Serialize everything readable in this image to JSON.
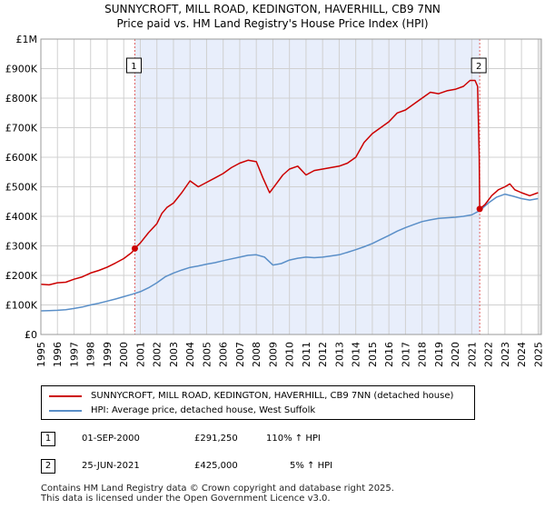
{
  "title_line1": "SUNNYCROFT, MILL ROAD, KEDINGTON, HAVERHILL, CB9 7NN",
  "title_line2": "Price paid vs. HM Land Registry's House Price Index (HPI)",
  "chart_data": {
    "type": "line",
    "title": "SUNNYCROFT, MILL ROAD, KEDINGTON, HAVERHILL, CB9 7NN — Price paid vs. HM Land Registry's House Price Index (HPI)",
    "xlabel": "",
    "ylabel": "",
    "xlim": [
      1995,
      2025.2
    ],
    "ylim": [
      0,
      1000000
    ],
    "y_ticks": [
      0,
      100000,
      200000,
      300000,
      400000,
      500000,
      600000,
      700000,
      800000,
      900000,
      1000000
    ],
    "y_tick_labels": [
      "£0",
      "£100K",
      "£200K",
      "£300K",
      "£400K",
      "£500K",
      "£600K",
      "£700K",
      "£800K",
      "£900K",
      "£1M"
    ],
    "x_ticks": [
      1995,
      1996,
      1997,
      1998,
      1999,
      2000,
      2001,
      2002,
      2003,
      2004,
      2005,
      2006,
      2007,
      2008,
      2009,
      2010,
      2011,
      2012,
      2013,
      2014,
      2015,
      2016,
      2017,
      2018,
      2019,
      2020,
      2021,
      2022,
      2023,
      2024,
      2025
    ],
    "x_tick_labels": [
      "1995",
      "1996",
      "1997",
      "1998",
      "1999",
      "2000",
      "2001",
      "2002",
      "2003",
      "2004",
      "2005",
      "2006",
      "2007",
      "2008",
      "2009",
      "2010",
      "2011",
      "2012",
      "2013",
      "2014",
      "2015",
      "2016",
      "2017",
      "2018",
      "2019",
      "2020",
      "2021",
      "2022",
      "2023",
      "2024",
      "2025"
    ],
    "grid": true,
    "shaded_range": [
      2000.67,
      2021.48
    ],
    "series": [
      {
        "name": "SUNNYCROFT, MILL ROAD, KEDINGTON, HAVERHILL, CB9 7NN (detached house)",
        "color": "#cc0000",
        "x": [
          1995.0,
          1995.5,
          1996.0,
          1996.5,
          1997.0,
          1997.5,
          1998.0,
          1998.5,
          1999.0,
          1999.5,
          2000.0,
          2000.5,
          2000.67,
          2001.0,
          2001.5,
          2002.0,
          2002.3,
          2002.6,
          2003.0,
          2003.5,
          2004.0,
          2004.5,
          2005.0,
          2005.5,
          2006.0,
          2006.5,
          2007.0,
          2007.5,
          2008.0,
          2008.4,
          2008.8,
          2009.2,
          2009.6,
          2010.0,
          2010.5,
          2011.0,
          2011.5,
          2012.0,
          2012.5,
          2013.0,
          2013.5,
          2014.0,
          2014.5,
          2015.0,
          2015.5,
          2016.0,
          2016.5,
          2017.0,
          2017.5,
          2018.0,
          2018.5,
          2019.0,
          2019.5,
          2020.0,
          2020.5,
          2020.9,
          2021.2,
          2021.35,
          2021.45,
          2021.48,
          2021.8,
          2022.2,
          2022.6,
          2023.0,
          2023.3,
          2023.6,
          2024.0,
          2024.5,
          2025.0
        ],
        "values": [
          170000,
          168000,
          175000,
          177000,
          187000,
          195000,
          208000,
          217000,
          228000,
          242000,
          257000,
          278000,
          291250,
          310000,
          345000,
          375000,
          410000,
          430000,
          445000,
          480000,
          520000,
          500000,
          515000,
          530000,
          545000,
          565000,
          580000,
          590000,
          585000,
          530000,
          480000,
          510000,
          540000,
          560000,
          570000,
          540000,
          555000,
          560000,
          565000,
          570000,
          580000,
          600000,
          650000,
          680000,
          700000,
          720000,
          750000,
          760000,
          780000,
          800000,
          820000,
          815000,
          825000,
          830000,
          840000,
          860000,
          860000,
          840000,
          600000,
          425000,
          440000,
          470000,
          490000,
          500000,
          510000,
          490000,
          480000,
          470000,
          480000
        ]
      },
      {
        "name": "HPI: Average price, detached house, West Suffolk",
        "color": "#5a8fc8",
        "x": [
          1995.0,
          1995.5,
          1996.0,
          1996.5,
          1997.0,
          1997.5,
          1998.0,
          1998.5,
          1999.0,
          1999.5,
          2000.0,
          2000.5,
          2001.0,
          2001.5,
          2002.0,
          2002.5,
          2003.0,
          2003.5,
          2004.0,
          2004.5,
          2005.0,
          2005.5,
          2006.0,
          2006.5,
          2007.0,
          2007.5,
          2008.0,
          2008.5,
          2009.0,
          2009.5,
          2010.0,
          2010.5,
          2011.0,
          2011.5,
          2012.0,
          2012.5,
          2013.0,
          2013.5,
          2014.0,
          2014.5,
          2015.0,
          2015.5,
          2016.0,
          2016.5,
          2017.0,
          2017.5,
          2018.0,
          2018.5,
          2019.0,
          2019.5,
          2020.0,
          2020.5,
          2021.0,
          2021.5,
          2022.0,
          2022.5,
          2023.0,
          2023.5,
          2024.0,
          2024.5,
          2025.0
        ],
        "values": [
          80000,
          80500,
          82000,
          84000,
          88000,
          93000,
          100000,
          106000,
          113000,
          120000,
          128000,
          136000,
          145000,
          158000,
          175000,
          195000,
          208000,
          218000,
          227000,
          232000,
          238000,
          243000,
          250000,
          256000,
          262000,
          268000,
          270000,
          262000,
          235000,
          240000,
          252000,
          258000,
          262000,
          260000,
          262000,
          266000,
          270000,
          278000,
          287000,
          297000,
          308000,
          322000,
          335000,
          350000,
          362000,
          372000,
          382000,
          388000,
          393000,
          395000,
          397000,
          400000,
          405000,
          420000,
          445000,
          465000,
          475000,
          468000,
          460000,
          455000,
          460000
        ]
      }
    ],
    "sales": [
      {
        "label": "1",
        "x": 2000.67,
        "price": 291250,
        "date": "01-SEP-2000",
        "price_text": "£291,250",
        "hpi_text": "110% ↑ HPI"
      },
      {
        "label": "2",
        "x": 2021.48,
        "price": 425000,
        "date": "25-JUN-2021",
        "price_text": "£425,000",
        "hpi_text": "5% ↑ HPI"
      }
    ]
  },
  "legend": {
    "property_label": "SUNNYCROFT, MILL ROAD, KEDINGTON, HAVERHILL, CB9 7NN (detached house)",
    "hpi_label": "HPI: Average price, detached house, West Suffolk",
    "property_color": "#cc0000",
    "hpi_color": "#5a8fc8"
  },
  "transactions": [
    {
      "num": "1",
      "date": "01-SEP-2000",
      "price": "£291,250",
      "hpi": "110% ↑ HPI"
    },
    {
      "num": "2",
      "date": "25-JUN-2021",
      "price": "£425,000",
      "hpi": "5% ↑ HPI"
    }
  ],
  "footer_line1": "Contains HM Land Registry data © Crown copyright and database right 2025.",
  "footer_line2": "This data is licensed under the Open Government Licence v3.0."
}
